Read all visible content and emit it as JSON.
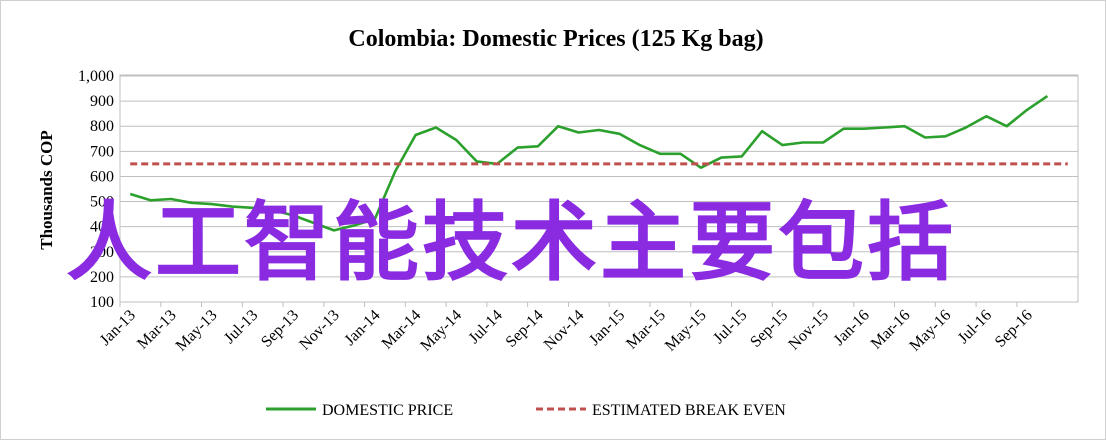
{
  "chart_data": {
    "type": "line",
    "title": "Colombia:  Domestic Prices (125 Kg bag)",
    "ylabel": "Thousands COP",
    "xlabel": "",
    "ylim": [
      100,
      1000
    ],
    "yticks": [
      "100",
      "200",
      "300",
      "400",
      "500",
      "600",
      "700",
      "800",
      "900",
      "1,000"
    ],
    "ytick_values": [
      100,
      200,
      300,
      400,
      500,
      600,
      700,
      800,
      900,
      1000
    ],
    "x_tick_labels": [
      "Jan-13",
      "Mar-13",
      "May-13",
      "Jul-13",
      "Sep-13",
      "Nov-13",
      "Jan-14",
      "Mar-14",
      "May-14",
      "Jul-14",
      "Sep-14",
      "Nov-14",
      "Jan-15",
      "Mar-15",
      "May-15",
      "Jul-15",
      "Sep-15",
      "Nov-15",
      "Jan-16",
      "Mar-16",
      "May-16",
      "Jul-16",
      "Sep-16"
    ],
    "x": [
      "Jan-13",
      "Feb-13",
      "Mar-13",
      "Apr-13",
      "May-13",
      "Jun-13",
      "Jul-13",
      "Aug-13",
      "Sep-13",
      "Oct-13",
      "Nov-13",
      "Dec-13",
      "Jan-14",
      "Feb-14",
      "Mar-14",
      "Apr-14",
      "May-14",
      "Jun-14",
      "Jul-14",
      "Aug-14",
      "Sep-14",
      "Oct-14",
      "Nov-14",
      "Dec-14",
      "Jan-15",
      "Feb-15",
      "Mar-15",
      "Apr-15",
      "May-15",
      "Jun-15",
      "Jul-15",
      "Aug-15",
      "Sep-15",
      "Oct-15",
      "Nov-15",
      "Dec-15",
      "Jan-16",
      "Feb-16",
      "Mar-16",
      "Apr-16",
      "May-16",
      "Jun-16",
      "Jul-16",
      "Aug-16",
      "Sep-16",
      "Oct-16",
      "Nov-16"
    ],
    "series": [
      {
        "name": "DOMESTIC PRICE",
        "color": "#2ca02c",
        "style": "solid",
        "values": [
          530,
          505,
          510,
          495,
          490,
          480,
          475,
          465,
          445,
          415,
          385,
          405,
          430,
          620,
          765,
          795,
          745,
          660,
          650,
          715,
          720,
          800,
          775,
          785,
          770,
          725,
          690,
          690,
          635,
          675,
          680,
          780,
          725,
          735,
          735,
          790,
          790,
          795,
          800,
          755,
          760,
          795,
          840,
          800,
          865,
          920,
          null
        ]
      },
      {
        "name": "ESTIMATED BREAK EVEN",
        "color": "#c0504d",
        "style": "dashed",
        "values": [
          650,
          650,
          650,
          650,
          650,
          650,
          650,
          650,
          650,
          650,
          650,
          650,
          650,
          650,
          650,
          650,
          650,
          650,
          650,
          650,
          650,
          650,
          650,
          650,
          650,
          650,
          650,
          650,
          650,
          650,
          650,
          650,
          650,
          650,
          650,
          650,
          650,
          650,
          650,
          650,
          650,
          650,
          650,
          650,
          650,
          650,
          650
        ]
      }
    ],
    "grid": true,
    "legend_position": "bottom"
  },
  "overlay_text": "人工智能技术主要包括"
}
